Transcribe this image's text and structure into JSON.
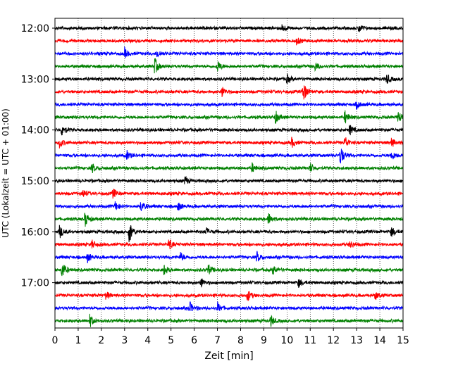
{
  "chart_data": {
    "type": "line",
    "title": "",
    "xlabel": "Zeit  [min]",
    "ylabel": "UTC (Lokalzeit = UTC + 01:00)",
    "xlim": [
      0,
      15
    ],
    "xticks": [
      0,
      1,
      2,
      3,
      4,
      5,
      6,
      7,
      8,
      9,
      10,
      11,
      12,
      13,
      14,
      15
    ],
    "xtick_labels": [
      "0",
      "1",
      "2",
      "3",
      "4",
      "5",
      "6",
      "7",
      "8",
      "9",
      "10",
      "11",
      "12",
      "13",
      "14",
      "15"
    ],
    "ytick_labels": [
      "12:00",
      "13:00",
      "14:00",
      "15:00",
      "16:00",
      "17:00"
    ],
    "ytick_rows": [
      0,
      4,
      8,
      12,
      16,
      20
    ],
    "grid": "vertical dotted",
    "colors": [
      "#000000",
      "#ff0000",
      "#0000ff",
      "#008000"
    ],
    "series": [
      {
        "start": "12:00",
        "color": "#000000",
        "events": [
          [
            9.8,
            1.2
          ],
          [
            13.1,
            1.3
          ]
        ]
      },
      {
        "start": "12:15",
        "color": "#ff0000",
        "events": [
          [
            10.4,
            1.2
          ]
        ]
      },
      {
        "start": "12:30",
        "color": "#0000ff",
        "events": [
          [
            3.0,
            1.5
          ],
          [
            4.4,
            1.2
          ]
        ]
      },
      {
        "start": "12:45",
        "color": "#008000",
        "events": [
          [
            4.3,
            2.5
          ],
          [
            7.0,
            1.8
          ],
          [
            11.2,
            1.2
          ]
        ]
      },
      {
        "start": "13:00",
        "color": "#000000",
        "events": [
          [
            10.0,
            1.3
          ],
          [
            14.3,
            1.5
          ]
        ]
      },
      {
        "start": "13:15",
        "color": "#ff0000",
        "events": [
          [
            7.2,
            1.5
          ],
          [
            10.7,
            3.0
          ]
        ]
      },
      {
        "start": "13:30",
        "color": "#0000ff",
        "events": [
          [
            13.0,
            1.2
          ]
        ]
      },
      {
        "start": "13:45",
        "color": "#008000",
        "events": [
          [
            9.5,
            1.8
          ],
          [
            12.5,
            2.0
          ],
          [
            14.8,
            2.0
          ]
        ]
      },
      {
        "start": "14:00",
        "color": "#000000",
        "events": [
          [
            0.3,
            1.8
          ],
          [
            12.7,
            1.5
          ]
        ]
      },
      {
        "start": "14:15",
        "color": "#ff0000",
        "events": [
          [
            0.2,
            1.5
          ],
          [
            10.2,
            1.5
          ],
          [
            12.5,
            1.8
          ],
          [
            14.5,
            1.3
          ]
        ]
      },
      {
        "start": "14:30",
        "color": "#0000ff",
        "events": [
          [
            3.1,
            1.3
          ],
          [
            12.3,
            3.0
          ],
          [
            14.5,
            1.5
          ]
        ]
      },
      {
        "start": "14:45",
        "color": "#008000",
        "events": [
          [
            1.6,
            1.4
          ],
          [
            8.5,
            1.3
          ],
          [
            11.0,
            1.4
          ]
        ]
      },
      {
        "start": "15:00",
        "color": "#000000",
        "events": [
          [
            5.6,
            1.2
          ]
        ]
      },
      {
        "start": "15:15",
        "color": "#ff0000",
        "events": [
          [
            1.2,
            1.3
          ],
          [
            2.5,
            1.6
          ]
        ]
      },
      {
        "start": "15:30",
        "color": "#0000ff",
        "events": [
          [
            2.6,
            1.4
          ],
          [
            3.7,
            1.6
          ],
          [
            5.3,
            1.3
          ]
        ]
      },
      {
        "start": "15:45",
        "color": "#008000",
        "events": [
          [
            1.3,
            2.2
          ],
          [
            9.2,
            1.8
          ]
        ]
      },
      {
        "start": "16:00",
        "color": "#000000",
        "events": [
          [
            0.2,
            2.0
          ],
          [
            3.2,
            3.5
          ],
          [
            6.5,
            1.3
          ],
          [
            14.5,
            1.5
          ]
        ]
      },
      {
        "start": "16:15",
        "color": "#ff0000",
        "events": [
          [
            1.6,
            1.2
          ],
          [
            4.9,
            1.6
          ],
          [
            12.7,
            1.3
          ]
        ]
      },
      {
        "start": "16:30",
        "color": "#0000ff",
        "events": [
          [
            1.4,
            1.4
          ],
          [
            5.4,
            1.4
          ],
          [
            8.7,
            1.6
          ]
        ]
      },
      {
        "start": "16:45",
        "color": "#008000",
        "events": [
          [
            0.3,
            2.6
          ],
          [
            4.7,
            1.4
          ],
          [
            6.6,
            1.6
          ],
          [
            9.4,
            1.4
          ]
        ]
      },
      {
        "start": "17:00",
        "color": "#000000",
        "events": [
          [
            6.3,
            1.4
          ],
          [
            10.5,
            1.3
          ]
        ]
      },
      {
        "start": "17:15",
        "color": "#ff0000",
        "events": [
          [
            2.2,
            1.2
          ],
          [
            8.3,
            1.8
          ],
          [
            13.8,
            1.2
          ]
        ]
      },
      {
        "start": "17:30",
        "color": "#0000ff",
        "events": [
          [
            5.8,
            1.8
          ],
          [
            7.0,
            1.6
          ]
        ]
      },
      {
        "start": "17:45",
        "color": "#008000",
        "events": [
          [
            1.5,
            1.8
          ],
          [
            9.3,
            1.6
          ]
        ]
      }
    ]
  }
}
